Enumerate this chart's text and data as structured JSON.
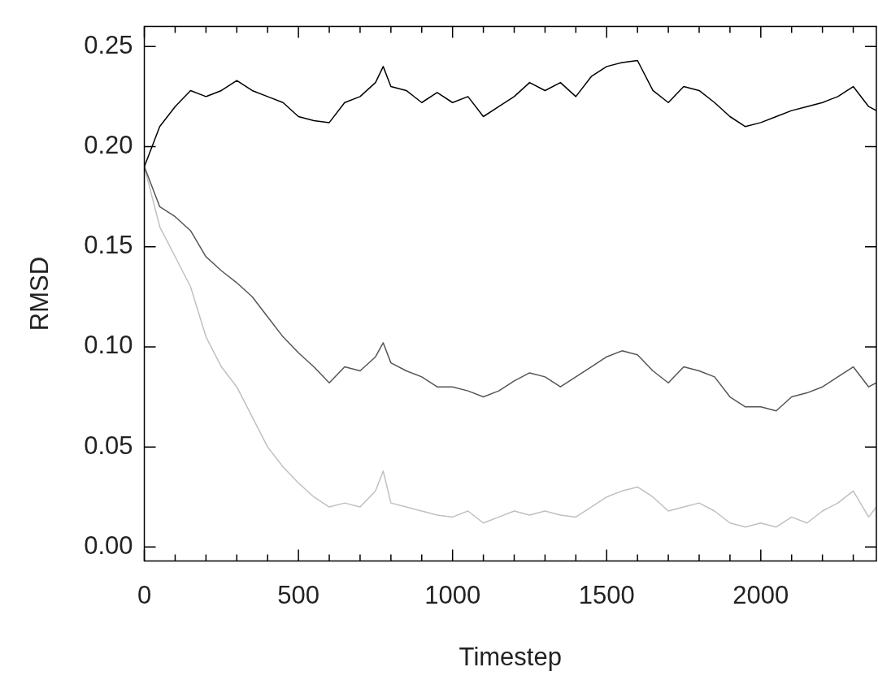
{
  "chart_data": {
    "type": "line",
    "xlabel": "Timestep",
    "ylabel": "RMSD",
    "x": [
      0,
      50,
      100,
      150,
      200,
      250,
      300,
      350,
      400,
      450,
      500,
      550,
      600,
      650,
      700,
      750,
      775,
      800,
      850,
      900,
      950,
      1000,
      1050,
      1100,
      1150,
      1200,
      1250,
      1300,
      1350,
      1400,
      1450,
      1500,
      1550,
      1600,
      1650,
      1700,
      1750,
      1800,
      1850,
      1900,
      1950,
      2000,
      2050,
      2100,
      2150,
      2200,
      2250,
      2300,
      2350,
      2375
    ],
    "series": [
      {
        "color": "#000000",
        "values": [
          0.19,
          0.21,
          0.22,
          0.228,
          0.225,
          0.228,
          0.233,
          0.228,
          0.225,
          0.222,
          0.215,
          0.213,
          0.212,
          0.222,
          0.225,
          0.232,
          0.24,
          0.23,
          0.228,
          0.222,
          0.227,
          0.222,
          0.225,
          0.215,
          0.22,
          0.225,
          0.232,
          0.228,
          0.232,
          0.225,
          0.235,
          0.24,
          0.242,
          0.243,
          0.228,
          0.222,
          0.23,
          0.228,
          0.222,
          0.215,
          0.21,
          0.212,
          0.215,
          0.218,
          0.22,
          0.222,
          0.225,
          0.23,
          0.22,
          0.218
        ]
      },
      {
        "color": "#555555",
        "values": [
          0.19,
          0.17,
          0.165,
          0.158,
          0.145,
          0.138,
          0.132,
          0.125,
          0.115,
          0.105,
          0.097,
          0.09,
          0.082,
          0.09,
          0.088,
          0.095,
          0.102,
          0.092,
          0.088,
          0.085,
          0.08,
          0.08,
          0.078,
          0.075,
          0.078,
          0.083,
          0.087,
          0.085,
          0.08,
          0.085,
          0.09,
          0.095,
          0.098,
          0.096,
          0.088,
          0.082,
          0.09,
          0.088,
          0.085,
          0.075,
          0.07,
          0.07,
          0.068,
          0.075,
          0.077,
          0.08,
          0.085,
          0.09,
          0.08,
          0.082
        ]
      },
      {
        "color": "#c0c0c0",
        "values": [
          0.19,
          0.16,
          0.145,
          0.13,
          0.105,
          0.09,
          0.08,
          0.065,
          0.05,
          0.04,
          0.032,
          0.025,
          0.02,
          0.022,
          0.02,
          0.028,
          0.038,
          0.022,
          0.02,
          0.018,
          0.016,
          0.015,
          0.018,
          0.012,
          0.015,
          0.018,
          0.016,
          0.018,
          0.016,
          0.015,
          0.02,
          0.025,
          0.028,
          0.03,
          0.025,
          0.018,
          0.02,
          0.022,
          0.018,
          0.012,
          0.01,
          0.012,
          0.01,
          0.015,
          0.012,
          0.018,
          0.022,
          0.028,
          0.015,
          0.02
        ]
      }
    ],
    "xlim": [
      0,
      2375
    ],
    "xticks": [
      0,
      {
        "value": 100,
        "label": null
      },
      {
        "value": 200,
        "label": null
      },
      {
        "value": 300,
        "label": null
      },
      {
        "value": 400,
        "label": null
      },
      500,
      {
        "value": 600,
        "label": null
      },
      {
        "value": 700,
        "label": null
      },
      {
        "value": 800,
        "label": null
      },
      {
        "value": 900,
        "label": null
      },
      1000,
      {
        "value": 1100,
        "label": null
      },
      {
        "value": 1200,
        "label": null
      },
      {
        "value": 1300,
        "label": null
      },
      {
        "value": 1400,
        "label": null
      },
      1500,
      {
        "value": 1600,
        "label": null
      },
      {
        "value": 1700,
        "label": null
      },
      {
        "value": 1800,
        "label": null
      },
      {
        "value": 1900,
        "label": null
      },
      2000,
      {
        "value": 2100,
        "label": null
      },
      {
        "value": 2200,
        "label": null
      },
      {
        "value": 2300,
        "label": null
      }
    ],
    "ylim": [
      -0.007,
      0.26
    ],
    "yticks": [
      {
        "value": 0,
        "label": "0.00"
      },
      {
        "value": 0.05,
        "label": "0.05"
      },
      {
        "value": 0.1,
        "label": "0.10"
      },
      {
        "value": 0.15,
        "label": "0.15"
      },
      {
        "value": 0.2,
        "label": "0.20"
      },
      {
        "value": 0.25,
        "label": "0.25"
      }
    ],
    "grid": false,
    "legend": false,
    "line_style": "solid"
  }
}
